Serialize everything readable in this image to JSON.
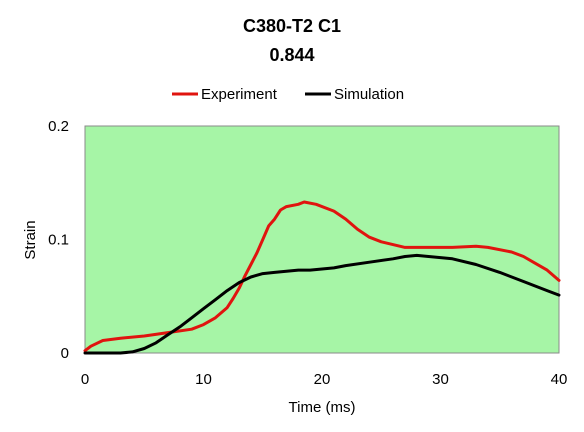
{
  "chart_data": {
    "type": "line",
    "title": "C380-T2 C1",
    "subtitle": "0.844",
    "xlabel": "Time (ms)",
    "ylabel": "Strain",
    "xlim": [
      0,
      40
    ],
    "ylim": [
      0,
      0.2
    ],
    "x_ticks": [
      "0",
      "10",
      "20",
      "30",
      "40"
    ],
    "y_ticks": [
      "0",
      "0.1",
      "0.2"
    ],
    "x_tick_values": [
      0,
      10,
      20,
      30,
      40
    ],
    "y_tick_values": [
      0,
      0.1,
      0.2
    ],
    "grid": false,
    "legend_position": "top",
    "plot_background": "#a6f5a6",
    "series": [
      {
        "name": "Experiment",
        "color": "#e0140f",
        "points": [
          [
            0,
            0.002
          ],
          [
            0.5,
            0.006
          ],
          [
            1.5,
            0.011
          ],
          [
            3,
            0.013
          ],
          [
            5,
            0.015
          ],
          [
            7,
            0.018
          ],
          [
            9,
            0.021
          ],
          [
            10,
            0.025
          ],
          [
            11,
            0.031
          ],
          [
            12,
            0.04
          ],
          [
            12.5,
            0.048
          ],
          [
            13,
            0.057
          ],
          [
            13.5,
            0.068
          ],
          [
            14,
            0.078
          ],
          [
            14.5,
            0.088
          ],
          [
            15,
            0.1
          ],
          [
            15.5,
            0.112
          ],
          [
            16,
            0.118
          ],
          [
            16.5,
            0.126
          ],
          [
            17,
            0.129
          ],
          [
            18,
            0.131
          ],
          [
            18.5,
            0.133
          ],
          [
            19.5,
            0.131
          ],
          [
            21,
            0.125
          ],
          [
            22,
            0.118
          ],
          [
            23,
            0.109
          ],
          [
            24,
            0.102
          ],
          [
            25,
            0.098
          ],
          [
            27,
            0.093
          ],
          [
            29,
            0.093
          ],
          [
            31,
            0.093
          ],
          [
            33,
            0.094
          ],
          [
            34,
            0.093
          ],
          [
            36,
            0.089
          ],
          [
            37,
            0.085
          ],
          [
            38,
            0.079
          ],
          [
            39,
            0.073
          ],
          [
            40,
            0.064
          ]
        ]
      },
      {
        "name": "Simulation",
        "color": "#000000",
        "points": [
          [
            0,
            0
          ],
          [
            3,
            0
          ],
          [
            4,
            0.001
          ],
          [
            5,
            0.004
          ],
          [
            6,
            0.009
          ],
          [
            7,
            0.016
          ],
          [
            8,
            0.023
          ],
          [
            9,
            0.031
          ],
          [
            10,
            0.039
          ],
          [
            11,
            0.047
          ],
          [
            12,
            0.055
          ],
          [
            13,
            0.062
          ],
          [
            14,
            0.067
          ],
          [
            15,
            0.07
          ],
          [
            16,
            0.071
          ],
          [
            17,
            0.072
          ],
          [
            18,
            0.073
          ],
          [
            19,
            0.073
          ],
          [
            20,
            0.074
          ],
          [
            21,
            0.075
          ],
          [
            22,
            0.077
          ],
          [
            24,
            0.08
          ],
          [
            26,
            0.083
          ],
          [
            27,
            0.085
          ],
          [
            28,
            0.086
          ],
          [
            29,
            0.085
          ],
          [
            31,
            0.083
          ],
          [
            33,
            0.078
          ],
          [
            35,
            0.071
          ],
          [
            37,
            0.063
          ],
          [
            39,
            0.055
          ],
          [
            40,
            0.051
          ]
        ]
      }
    ]
  }
}
